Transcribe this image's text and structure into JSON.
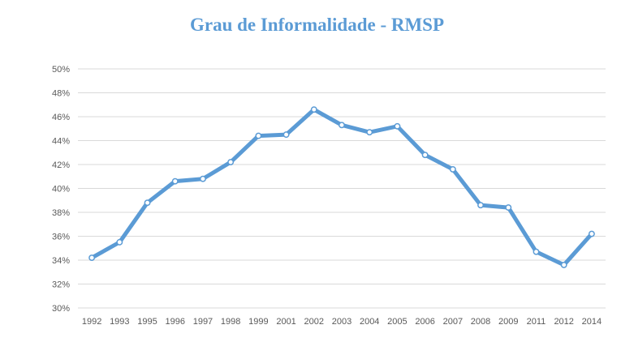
{
  "chart_data": {
    "type": "line",
    "title": "Grau de Informalidade - RMSP",
    "xlabel": "",
    "ylabel": "",
    "categories": [
      "1992",
      "1993",
      "1995",
      "1996",
      "1997",
      "1998",
      "1999",
      "2001",
      "2002",
      "2003",
      "2004",
      "2005",
      "2006",
      "2007",
      "2008",
      "2009",
      "2011",
      "2012",
      "2014"
    ],
    "series": [
      {
        "values": [
          34.2,
          35.5,
          38.8,
          40.6,
          40.8,
          42.2,
          44.4,
          44.5,
          46.6,
          45.3,
          44.7,
          45.2,
          42.8,
          41.6,
          38.6,
          38.4,
          34.7,
          33.6,
          36.2
        ]
      }
    ],
    "ylim": [
      30,
      50
    ],
    "yticks": [
      "30%",
      "32%",
      "34%",
      "36%",
      "38%",
      "40%",
      "42%",
      "44%",
      "46%",
      "48%",
      "50%"
    ],
    "ytick_values": [
      30,
      32,
      34,
      36,
      38,
      40,
      42,
      44,
      46,
      48,
      50
    ],
    "grid": true,
    "legend": "none",
    "line_color": "#5b9bd5",
    "grid_color": "#d9d9d9"
  }
}
